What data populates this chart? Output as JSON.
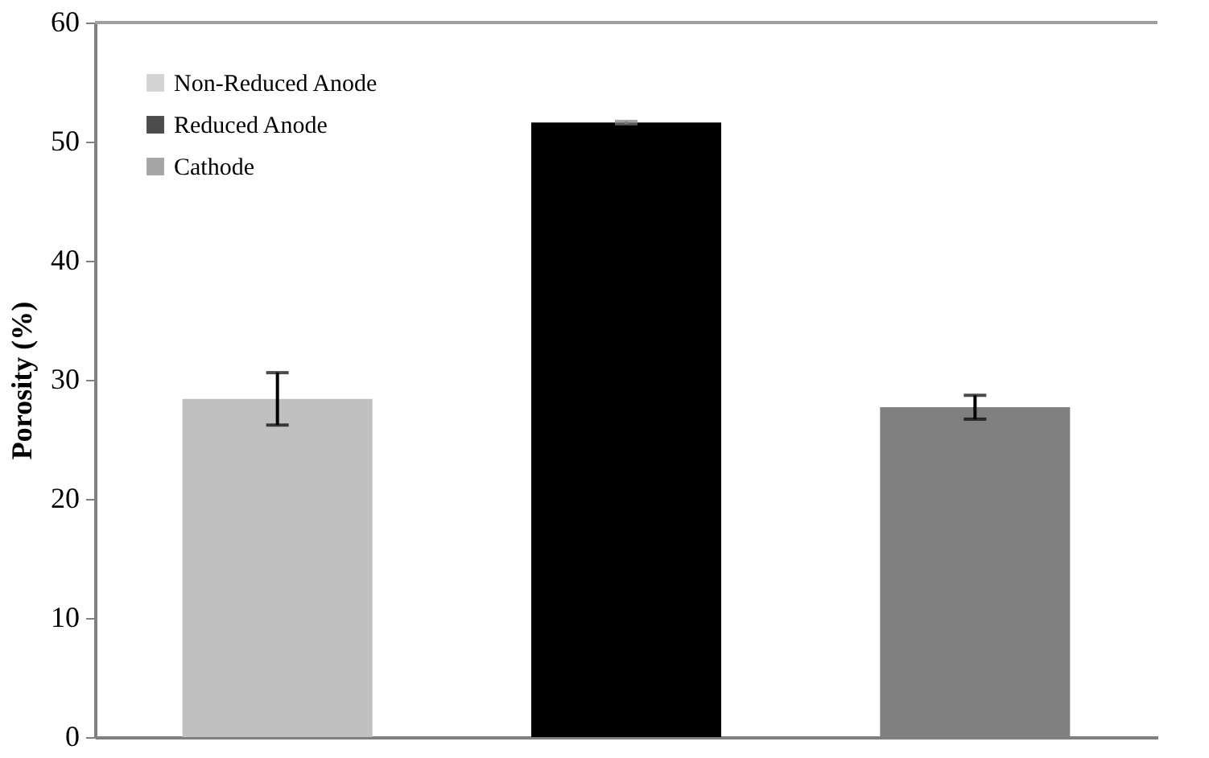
{
  "chart_data": {
    "type": "bar",
    "ylabel": "Porosity (%)",
    "categories": [
      null,
      null,
      null
    ],
    "series": [
      {
        "name": "Non-Reduced Anode",
        "color": "#c0c0c0",
        "values": [
          28.4,
          null,
          null
        ],
        "errors": [
          2.2,
          null,
          null
        ]
      },
      {
        "name": "Reduced Anode",
        "color": "#000000",
        "values": [
          null,
          51.6,
          null
        ],
        "errors": [
          null,
          0.1,
          null
        ]
      },
      {
        "name": "Cathode",
        "color": "#808080",
        "values": [
          null,
          null,
          27.7
        ],
        "errors": [
          null,
          null,
          1.0
        ]
      }
    ],
    "ylim": [
      0,
      60
    ],
    "yticks": [
      0,
      10,
      20,
      30,
      40,
      50,
      60
    ],
    "grid": false,
    "legend": "top left"
  }
}
